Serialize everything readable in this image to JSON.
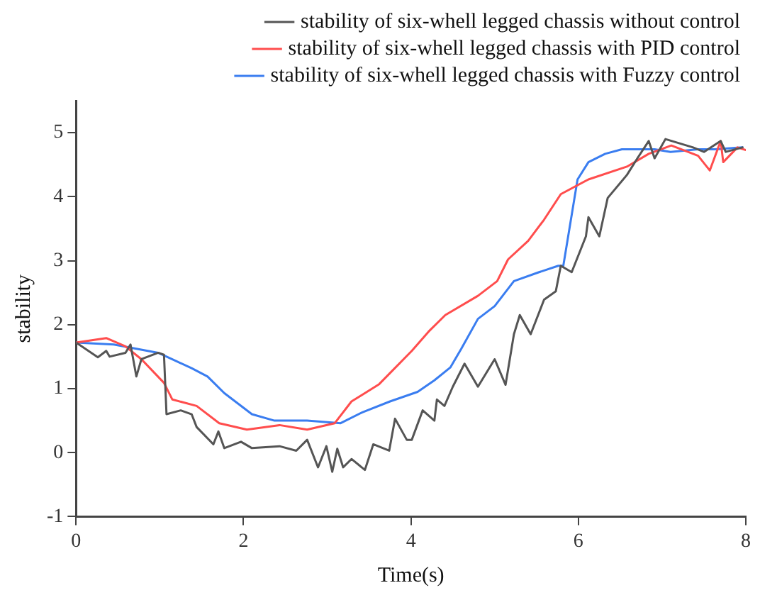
{
  "chart_data": {
    "type": "line",
    "xlabel": "Time(s)",
    "ylabel": "stability",
    "xlim": [
      0,
      8
    ],
    "ylim": [
      -1,
      5.5
    ],
    "xticks": [
      0,
      2,
      4,
      6,
      8
    ],
    "yticks": [
      -1,
      0,
      1,
      2,
      3,
      4,
      5
    ],
    "grid": false,
    "legend": "top right",
    "marker": "none",
    "line_style": "solid",
    "series": [
      {
        "name": "stability of six-whell legged chassis without control",
        "color": "#555555",
        "x": [
          0,
          0.26,
          0.36,
          0.4,
          0.59,
          0.65,
          0.72,
          0.78,
          0.98,
          1.05,
          1.08,
          1.25,
          1.38,
          1.44,
          1.64,
          1.7,
          1.77,
          1.97,
          2.1,
          2.43,
          2.63,
          2.76,
          2.89,
          2.99,
          3.06,
          3.12,
          3.19,
          3.29,
          3.45,
          3.55,
          3.74,
          3.81,
          3.95,
          4.01,
          4.14,
          4.28,
          4.31,
          4.4,
          4.5,
          4.64,
          4.8,
          5.0,
          5.13,
          5.23,
          5.3,
          5.43,
          5.59,
          5.73,
          5.79,
          5.92,
          6.09,
          6.12,
          6.25,
          6.35,
          6.58,
          6.71,
          6.84,
          6.91,
          7.04,
          7.37,
          7.5,
          7.7,
          7.76,
          7.96
        ],
        "values": [
          1.72,
          1.49,
          1.59,
          1.5,
          1.56,
          1.69,
          1.19,
          1.46,
          1.56,
          1.53,
          0.6,
          0.66,
          0.6,
          0.4,
          0.13,
          0.33,
          0.07,
          0.17,
          0.07,
          0.1,
          0.03,
          0.2,
          -0.23,
          0.1,
          -0.3,
          0.06,
          -0.23,
          -0.1,
          -0.27,
          0.13,
          0.03,
          0.53,
          0.2,
          0.2,
          0.66,
          0.5,
          0.83,
          0.73,
          1.03,
          1.39,
          1.03,
          1.46,
          1.06,
          1.85,
          2.15,
          1.85,
          2.39,
          2.52,
          2.92,
          2.82,
          3.38,
          3.68,
          3.38,
          3.98,
          4.34,
          4.61,
          4.87,
          4.6,
          4.9,
          4.77,
          4.7,
          4.87,
          4.7,
          4.77
        ]
      },
      {
        "name": "stability of six-whell legged chassis with PID control",
        "color": "#ff4d4d",
        "x": [
          0,
          0.36,
          0.59,
          0.78,
          1.05,
          1.15,
          1.44,
          1.71,
          2.04,
          2.43,
          2.76,
          3.09,
          3.29,
          3.62,
          4.01,
          4.21,
          4.41,
          4.8,
          5.03,
          5.16,
          5.4,
          5.59,
          5.79,
          6.12,
          6.58,
          6.84,
          7.11,
          7.43,
          7.57,
          7.7,
          7.73,
          7.9,
          8.0
        ],
        "values": [
          1.72,
          1.79,
          1.66,
          1.46,
          1.09,
          0.83,
          0.73,
          0.46,
          0.36,
          0.43,
          0.36,
          0.46,
          0.8,
          1.07,
          1.59,
          1.89,
          2.15,
          2.45,
          2.68,
          3.02,
          3.31,
          3.64,
          4.04,
          4.27,
          4.47,
          4.67,
          4.8,
          4.64,
          4.41,
          4.87,
          4.54,
          4.77,
          4.73
        ]
      },
      {
        "name": "stability of six-whell legged chassis with Fuzzy control",
        "color": "#3a7df0",
        "x": [
          0,
          0.45,
          0.98,
          1.38,
          1.57,
          1.77,
          2.1,
          2.37,
          2.76,
          3.16,
          3.42,
          3.75,
          4.08,
          4.28,
          4.47,
          4.6,
          4.8,
          5.0,
          5.23,
          5.53,
          5.76,
          5.82,
          5.99,
          6.12,
          6.32,
          6.52,
          6.91,
          7.1,
          7.43,
          7.63,
          7.96
        ],
        "values": [
          1.72,
          1.69,
          1.56,
          1.32,
          1.19,
          0.93,
          0.6,
          0.5,
          0.5,
          0.46,
          0.63,
          0.8,
          0.95,
          1.13,
          1.33,
          1.62,
          2.09,
          2.29,
          2.68,
          2.82,
          2.92,
          2.92,
          4.27,
          4.54,
          4.67,
          4.74,
          4.74,
          4.7,
          4.74,
          4.74,
          4.77
        ]
      }
    ]
  }
}
